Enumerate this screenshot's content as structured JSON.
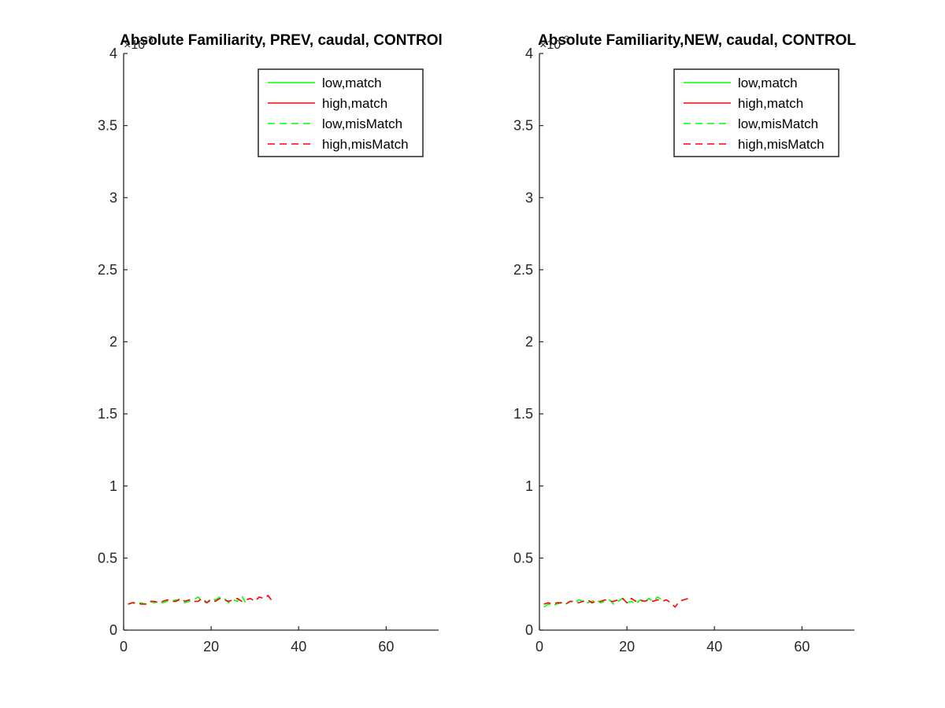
{
  "chart_data": [
    {
      "type": "line",
      "title": "Absolute Familiarity, PREV, caudal, CONTROl",
      "y_exponent_label": "×10",
      "y_exponent_power": "-3",
      "xlim": [
        0,
        72
      ],
      "ylim": [
        0,
        4
      ],
      "xticks": [
        0,
        20,
        40,
        60
      ],
      "yticks": [
        0,
        0.5,
        1,
        1.5,
        2,
        2.5,
        3,
        3.5,
        4
      ],
      "xtick_labels": [
        "0",
        "20",
        "40",
        "60"
      ],
      "ytick_labels": [
        "0",
        "0.5",
        "1",
        "1.5",
        "2",
        "2.5",
        "3",
        "3.5",
        "4"
      ],
      "legend_position": "top-right",
      "legend": [
        "low,match",
        "high,match",
        "low,misMatch",
        "high,misMatch"
      ],
      "series": [
        {
          "name": "low,match",
          "color": "#00ff00",
          "dash": "solid",
          "x": [],
          "y": []
        },
        {
          "name": "high,match",
          "color": "#ff0000",
          "dash": "solid",
          "x": [],
          "y": []
        },
        {
          "name": "low,misMatch",
          "color": "#00ff00",
          "dash": "dashed",
          "x": [
            1,
            2,
            3,
            4,
            5,
            6,
            7,
            8,
            9,
            10,
            11,
            12,
            13,
            14,
            15,
            16,
            17,
            18,
            19,
            20,
            21,
            22,
            23,
            24,
            25,
            26,
            27,
            28
          ],
          "y": [
            0.18,
            0.19,
            0.18,
            0.19,
            0.18,
            0.2,
            0.19,
            0.2,
            0.19,
            0.2,
            0.2,
            0.21,
            0.2,
            0.19,
            0.2,
            0.21,
            0.23,
            0.2,
            0.19,
            0.22,
            0.21,
            0.23,
            0.22,
            0.19,
            0.21,
            0.2,
            0.24,
            0.18
          ]
        },
        {
          "name": "high,misMatch",
          "color": "#ff0000",
          "dash": "dashed",
          "x": [
            1,
            2,
            3,
            4,
            5,
            6,
            7,
            8,
            9,
            10,
            11,
            12,
            13,
            14,
            15,
            16,
            17,
            18,
            19,
            20,
            21,
            22,
            23,
            24,
            25,
            26,
            27,
            28,
            29,
            30,
            31,
            32,
            33,
            34
          ],
          "y": [
            0.18,
            0.19,
            0.19,
            0.18,
            0.18,
            0.2,
            0.2,
            0.19,
            0.2,
            0.21,
            0.2,
            0.2,
            0.22,
            0.2,
            0.21,
            0.2,
            0.2,
            0.22,
            0.19,
            0.21,
            0.2,
            0.22,
            0.21,
            0.2,
            0.21,
            0.22,
            0.2,
            0.21,
            0.22,
            0.2,
            0.23,
            0.22,
            0.24,
            0.2
          ]
        }
      ]
    },
    {
      "type": "line",
      "title": "Absolute Familiarity,NEW, caudal, CONTROL",
      "y_exponent_label": "×10",
      "y_exponent_power": "-3",
      "xlim": [
        0,
        72
      ],
      "ylim": [
        0,
        4
      ],
      "xticks": [
        0,
        20,
        40,
        60
      ],
      "yticks": [
        0,
        0.5,
        1,
        1.5,
        2,
        2.5,
        3,
        3.5,
        4
      ],
      "xtick_labels": [
        "0",
        "20",
        "40",
        "60"
      ],
      "ytick_labels": [
        "0",
        "0.5",
        "1",
        "1.5",
        "2",
        "2.5",
        "3",
        "3.5",
        "4"
      ],
      "legend_position": "top-right",
      "legend": [
        "low,match",
        "high,match",
        "low,misMatch",
        "high,misMatch"
      ],
      "series": [
        {
          "name": "low,match",
          "color": "#00ff00",
          "dash": "solid",
          "x": [],
          "y": []
        },
        {
          "name": "high,match",
          "color": "#ff0000",
          "dash": "solid",
          "x": [],
          "y": []
        },
        {
          "name": "low,misMatch",
          "color": "#00ff00",
          "dash": "dashed",
          "x": [
            1,
            2,
            3,
            4,
            5,
            6,
            7,
            8,
            9,
            10,
            11,
            12,
            13,
            14,
            15,
            16,
            17,
            18,
            19,
            20,
            21,
            22,
            23,
            24,
            25,
            26,
            27,
            28
          ],
          "y": [
            0.16,
            0.18,
            0.17,
            0.18,
            0.19,
            0.18,
            0.2,
            0.19,
            0.21,
            0.2,
            0.19,
            0.2,
            0.21,
            0.19,
            0.2,
            0.21,
            0.18,
            0.2,
            0.22,
            0.19,
            0.2,
            0.18,
            0.21,
            0.19,
            0.22,
            0.2,
            0.23,
            0.21
          ]
        },
        {
          "name": "high,misMatch",
          "color": "#ff0000",
          "dash": "dashed",
          "x": [
            1,
            2,
            3,
            4,
            5,
            6,
            7,
            8,
            9,
            10,
            11,
            12,
            13,
            14,
            15,
            16,
            17,
            18,
            19,
            20,
            21,
            22,
            23,
            24,
            25,
            26,
            27,
            28,
            29,
            30,
            31,
            32,
            33,
            34
          ],
          "y": [
            0.18,
            0.19,
            0.18,
            0.19,
            0.19,
            0.18,
            0.2,
            0.2,
            0.19,
            0.2,
            0.21,
            0.19,
            0.2,
            0.2,
            0.21,
            0.2,
            0.2,
            0.21,
            0.22,
            0.19,
            0.22,
            0.2,
            0.21,
            0.2,
            0.21,
            0.2,
            0.21,
            0.2,
            0.21,
            0.19,
            0.16,
            0.2,
            0.21,
            0.22
          ]
        }
      ]
    }
  ]
}
